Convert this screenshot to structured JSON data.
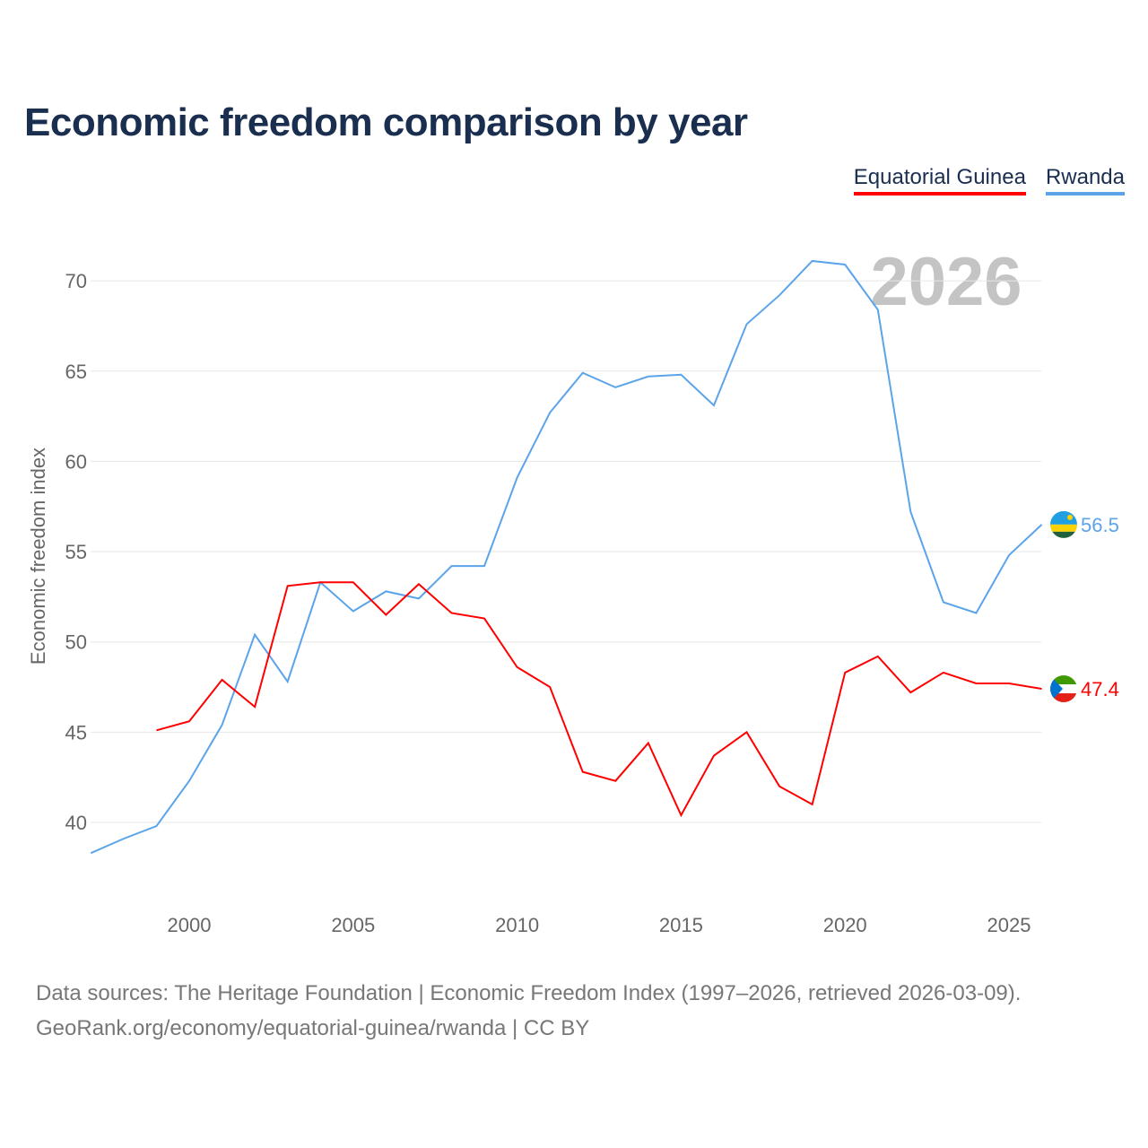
{
  "title": "Economic freedom comparison by year",
  "year_watermark": "2026",
  "footer": {
    "line1": "Data sources: The Heritage Foundation | Economic Freedom Index (1997–2026, retrieved 2026-03-09).",
    "line2": "GeoRank.org/economy/equatorial-guinea/rwanda | CC BY"
  },
  "chart_data": {
    "type": "line",
    "title": "Economic freedom comparison by year",
    "xlabel": "",
    "ylabel": "Economic freedom index",
    "xlim": [
      1997,
      2026
    ],
    "ylim": [
      35,
      72
    ],
    "xticks": [
      2000,
      2005,
      2010,
      2015,
      2020,
      2025
    ],
    "yticks": [
      40,
      45,
      50,
      55,
      60,
      65,
      70
    ],
    "grid": true,
    "legend_placement": "top-right",
    "series": [
      {
        "name": "Equatorial Guinea",
        "color": "#ff0000",
        "end_label": "47.4",
        "x": [
          1999,
          2000,
          2001,
          2002,
          2003,
          2004,
          2005,
          2006,
          2007,
          2008,
          2009,
          2010,
          2011,
          2012,
          2013,
          2014,
          2015,
          2016,
          2017,
          2018,
          2019,
          2020,
          2021,
          2022,
          2023,
          2024,
          2025,
          2026
        ],
        "values": [
          45.1,
          45.6,
          47.9,
          46.4,
          53.1,
          53.3,
          53.3,
          51.5,
          53.2,
          51.6,
          51.3,
          48.6,
          47.5,
          42.8,
          42.3,
          44.4,
          40.4,
          43.7,
          45.0,
          42.0,
          41.0,
          48.3,
          49.2,
          47.2,
          48.3,
          47.7,
          47.7,
          47.4
        ]
      },
      {
        "name": "Rwanda",
        "color": "#5ba4ea",
        "end_label": "56.5",
        "x": [
          1997,
          1998,
          1999,
          2000,
          2001,
          2002,
          2003,
          2004,
          2005,
          2006,
          2007,
          2008,
          2009,
          2010,
          2011,
          2012,
          2013,
          2014,
          2015,
          2016,
          2017,
          2018,
          2019,
          2020,
          2021,
          2022,
          2023,
          2024,
          2025,
          2026
        ],
        "values": [
          38.3,
          39.1,
          39.8,
          42.3,
          45.4,
          50.4,
          47.8,
          53.3,
          51.7,
          52.8,
          52.4,
          54.2,
          54.2,
          59.1,
          62.7,
          64.9,
          64.1,
          64.7,
          64.8,
          63.1,
          67.6,
          69.2,
          71.1,
          70.9,
          68.4,
          57.2,
          52.2,
          51.6,
          54.8,
          56.5
        ]
      }
    ]
  }
}
